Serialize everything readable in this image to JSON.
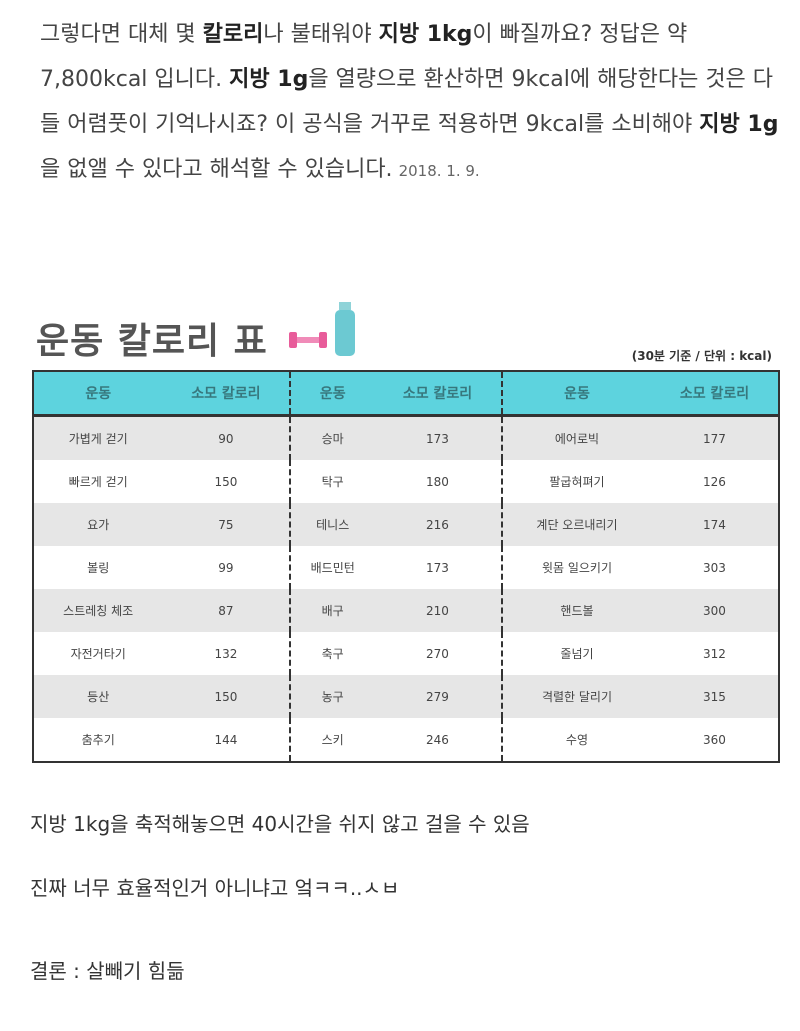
{
  "intro": {
    "segments": [
      {
        "t": "그렇다면 대체 몇 ",
        "b": false
      },
      {
        "t": "칼로리",
        "b": true
      },
      {
        "t": "나 불태워야 ",
        "b": false
      },
      {
        "t": "지방 1kg",
        "b": true
      },
      {
        "t": "이 빠질까요? 정답은 약 7,800kcal 입니다. ",
        "b": false
      },
      {
        "t": "지방 1g",
        "b": true
      },
      {
        "t": "을 열량으로 환산하면 9kcal에 해당한다는 것은 다들 어렴풋이 기억나시죠? 이 공식을 거꾸로 적용하면 9kcal를 소비해야 ",
        "b": false
      },
      {
        "t": "지방 1g",
        "b": true
      },
      {
        "t": "을 없앨 수 있다고 해석할 수 있습니다.",
        "b": false
      }
    ],
    "date": "2018. 1. 9."
  },
  "table_title": "운동 칼로리 표",
  "table_note": "(30분 기준 / 단위 : kcal)",
  "colors": {
    "header_bg": "#5dd3de",
    "header_text": "#37777d",
    "stripe": "#e6e6e6"
  },
  "table": {
    "headers": [
      "운동",
      "소모 칼로리",
      "운동",
      "소모 칼로리",
      "운동",
      "소모 칼로리"
    ],
    "rows": [
      [
        "가볍게 걷기",
        "90",
        "승마",
        "173",
        "에어로빅",
        "177"
      ],
      [
        "빠르게 걷기",
        "150",
        "탁구",
        "180",
        "팔굽혀펴기",
        "126"
      ],
      [
        "요가",
        "75",
        "테니스",
        "216",
        "계단 오르내리기",
        "174"
      ],
      [
        "볼링",
        "99",
        "배드민턴",
        "173",
        "윗몸 일으키기",
        "303"
      ],
      [
        "스트레칭 체조",
        "87",
        "배구",
        "210",
        "핸드볼",
        "300"
      ],
      [
        "자전거타기",
        "132",
        "축구",
        "270",
        "줄넘기",
        "312"
      ],
      [
        "등산",
        "150",
        "농구",
        "279",
        "격렬한 달리기",
        "315"
      ],
      [
        "춤추기",
        "144",
        "스키",
        "246",
        "수영",
        "360"
      ]
    ]
  },
  "outro": [
    "지방 1kg을 축적해놓으면 40시간을 쉬지 않고 걸을 수 있음",
    "진짜 너무 효율적인거 아니냐고 엌ㅋㅋ..ㅅㅂ",
    "결론 : 살빼기 힘듦"
  ]
}
